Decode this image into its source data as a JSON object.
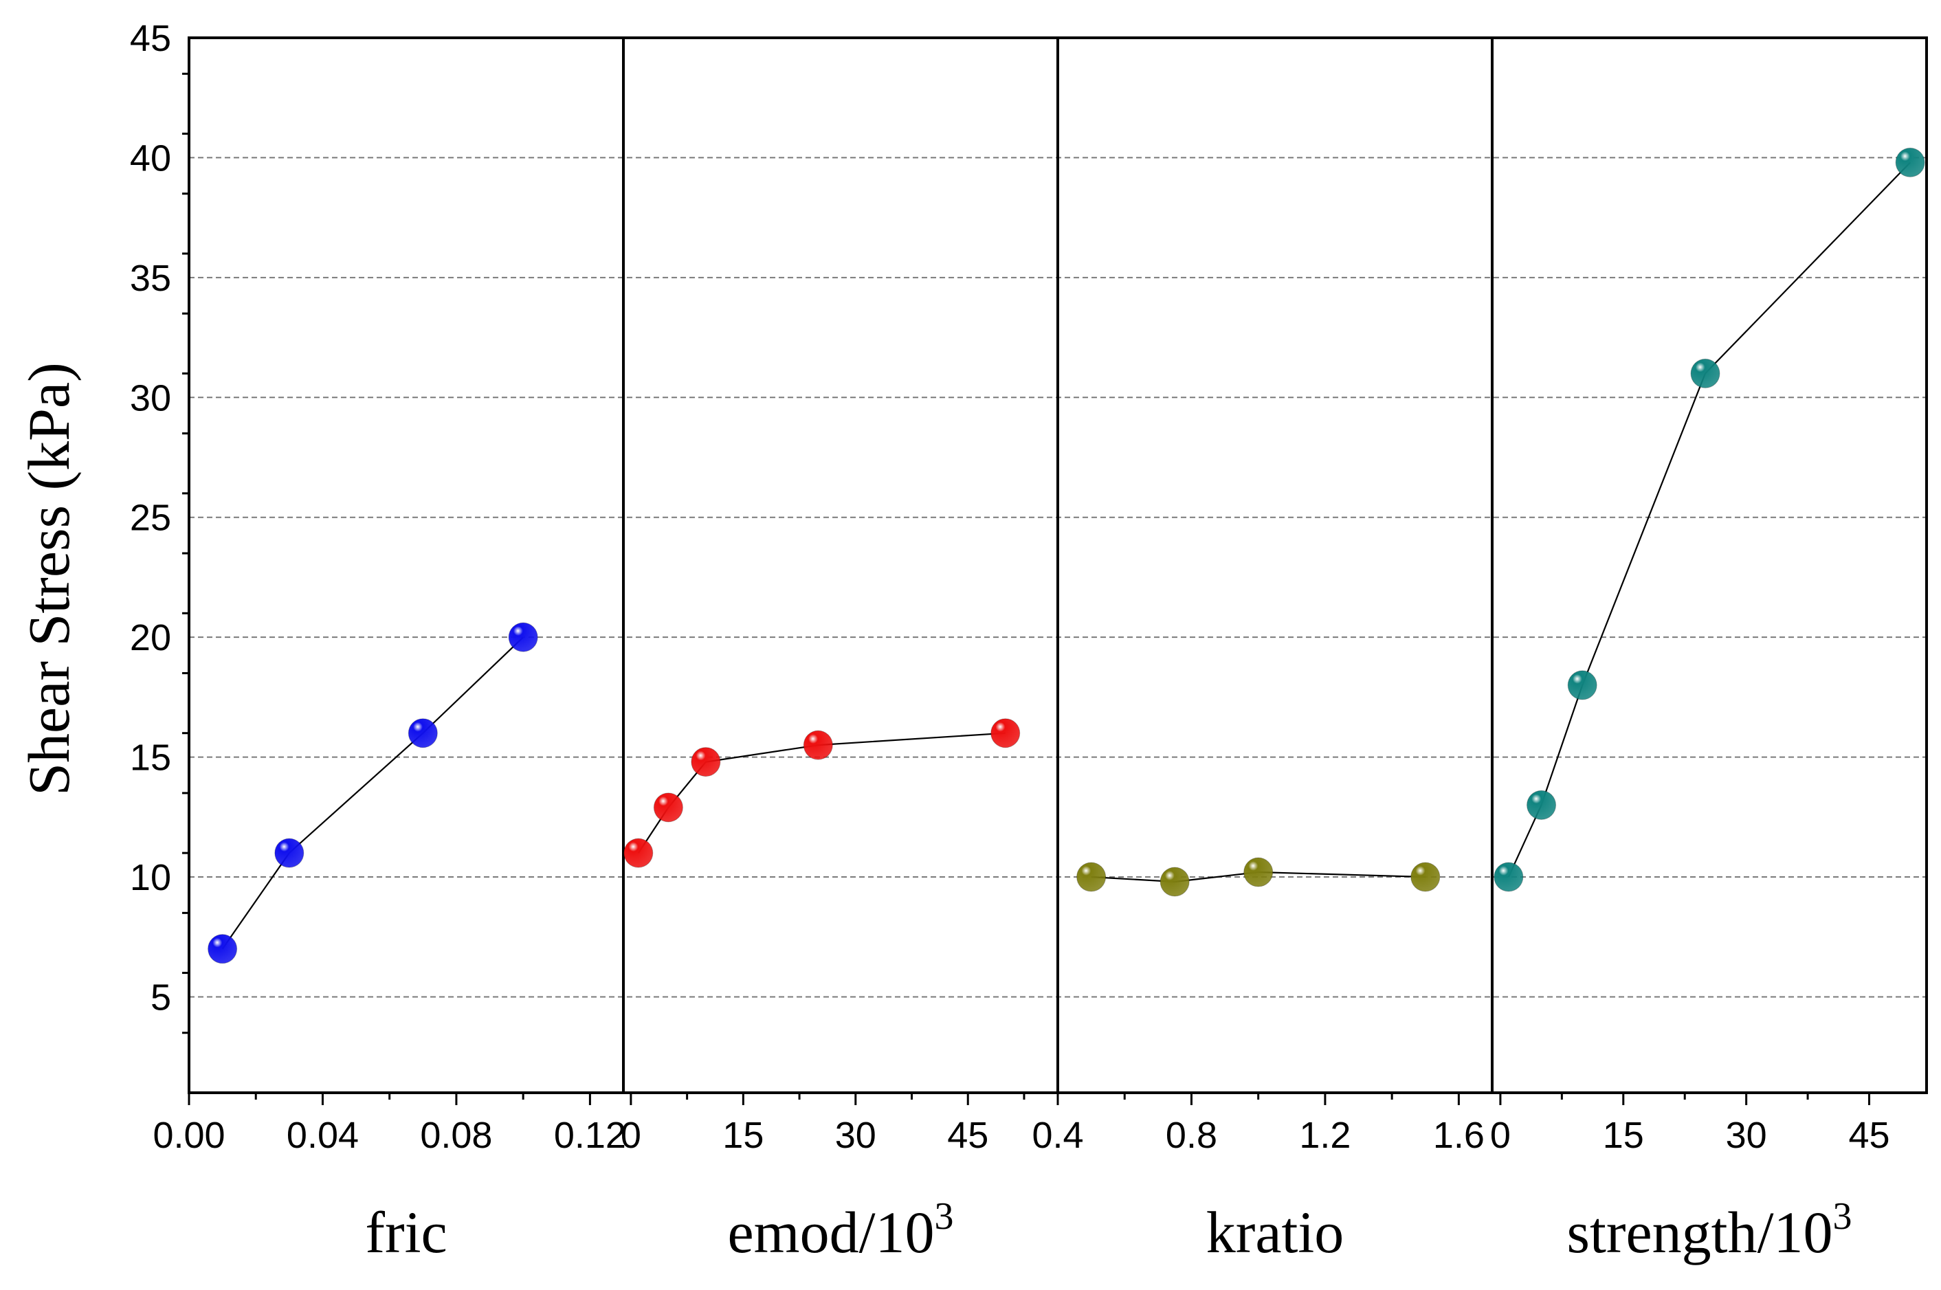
{
  "chart_data": {
    "type": "scatter",
    "ylabel": "Shear Stress (kPa)",
    "ylim": [
      1,
      45
    ],
    "yticks": [
      5,
      10,
      15,
      20,
      25,
      30,
      35,
      40,
      45
    ],
    "yminor_step": 2.5,
    "grid": true,
    "panels": [
      {
        "name": "fric",
        "xlabel": "fric",
        "xlabel_sup": "",
        "xlim": [
          0,
          0.13
        ],
        "xticks": [
          0,
          0.04,
          0.08,
          0.12
        ],
        "xtick_labels": [
          "0.00",
          "0.04",
          "0.08",
          "0.12"
        ],
        "xminor_step": 0.02,
        "color": "#1010ee",
        "x": [
          0.01,
          0.03,
          0.07,
          0.1
        ],
        "y": [
          7,
          11,
          16,
          20
        ]
      },
      {
        "name": "emod",
        "xlabel": "emod/10",
        "xlabel_sup": "3",
        "xlim": [
          -1,
          57
        ],
        "xticks": [
          0,
          15,
          30,
          45
        ],
        "xtick_labels": [
          "0",
          "15",
          "30",
          "45"
        ],
        "xminor_step": 7.5,
        "color": "#ee1010",
        "x": [
          1,
          5,
          10,
          25,
          50
        ],
        "y": [
          11,
          12.9,
          14.8,
          15.5,
          16
        ]
      },
      {
        "name": "kratio",
        "xlabel": "kratio",
        "xlabel_sup": "",
        "xlim": [
          0.4,
          1.7
        ],
        "xticks": [
          0.4,
          0.8,
          1.2,
          1.6
        ],
        "xtick_labels": [
          "0.4",
          "0.8",
          "1.2",
          "1.6"
        ],
        "xminor_step": 0.2,
        "color": "#7f7f10",
        "x": [
          0.5,
          0.75,
          1.0,
          1.5
        ],
        "y": [
          10,
          9.8,
          10.2,
          10
        ]
      },
      {
        "name": "strength",
        "xlabel": "strength/10",
        "xlabel_sup": "3",
        "xlim": [
          -1,
          52
        ],
        "xticks": [
          0,
          15,
          30,
          45
        ],
        "xtick_labels": [
          "0",
          "15",
          "30",
          "45"
        ],
        "xminor_step": 7.5,
        "color": "#108480",
        "x": [
          1,
          5,
          10,
          25,
          50
        ],
        "y": [
          10,
          13,
          18,
          31,
          39.8
        ]
      }
    ]
  }
}
